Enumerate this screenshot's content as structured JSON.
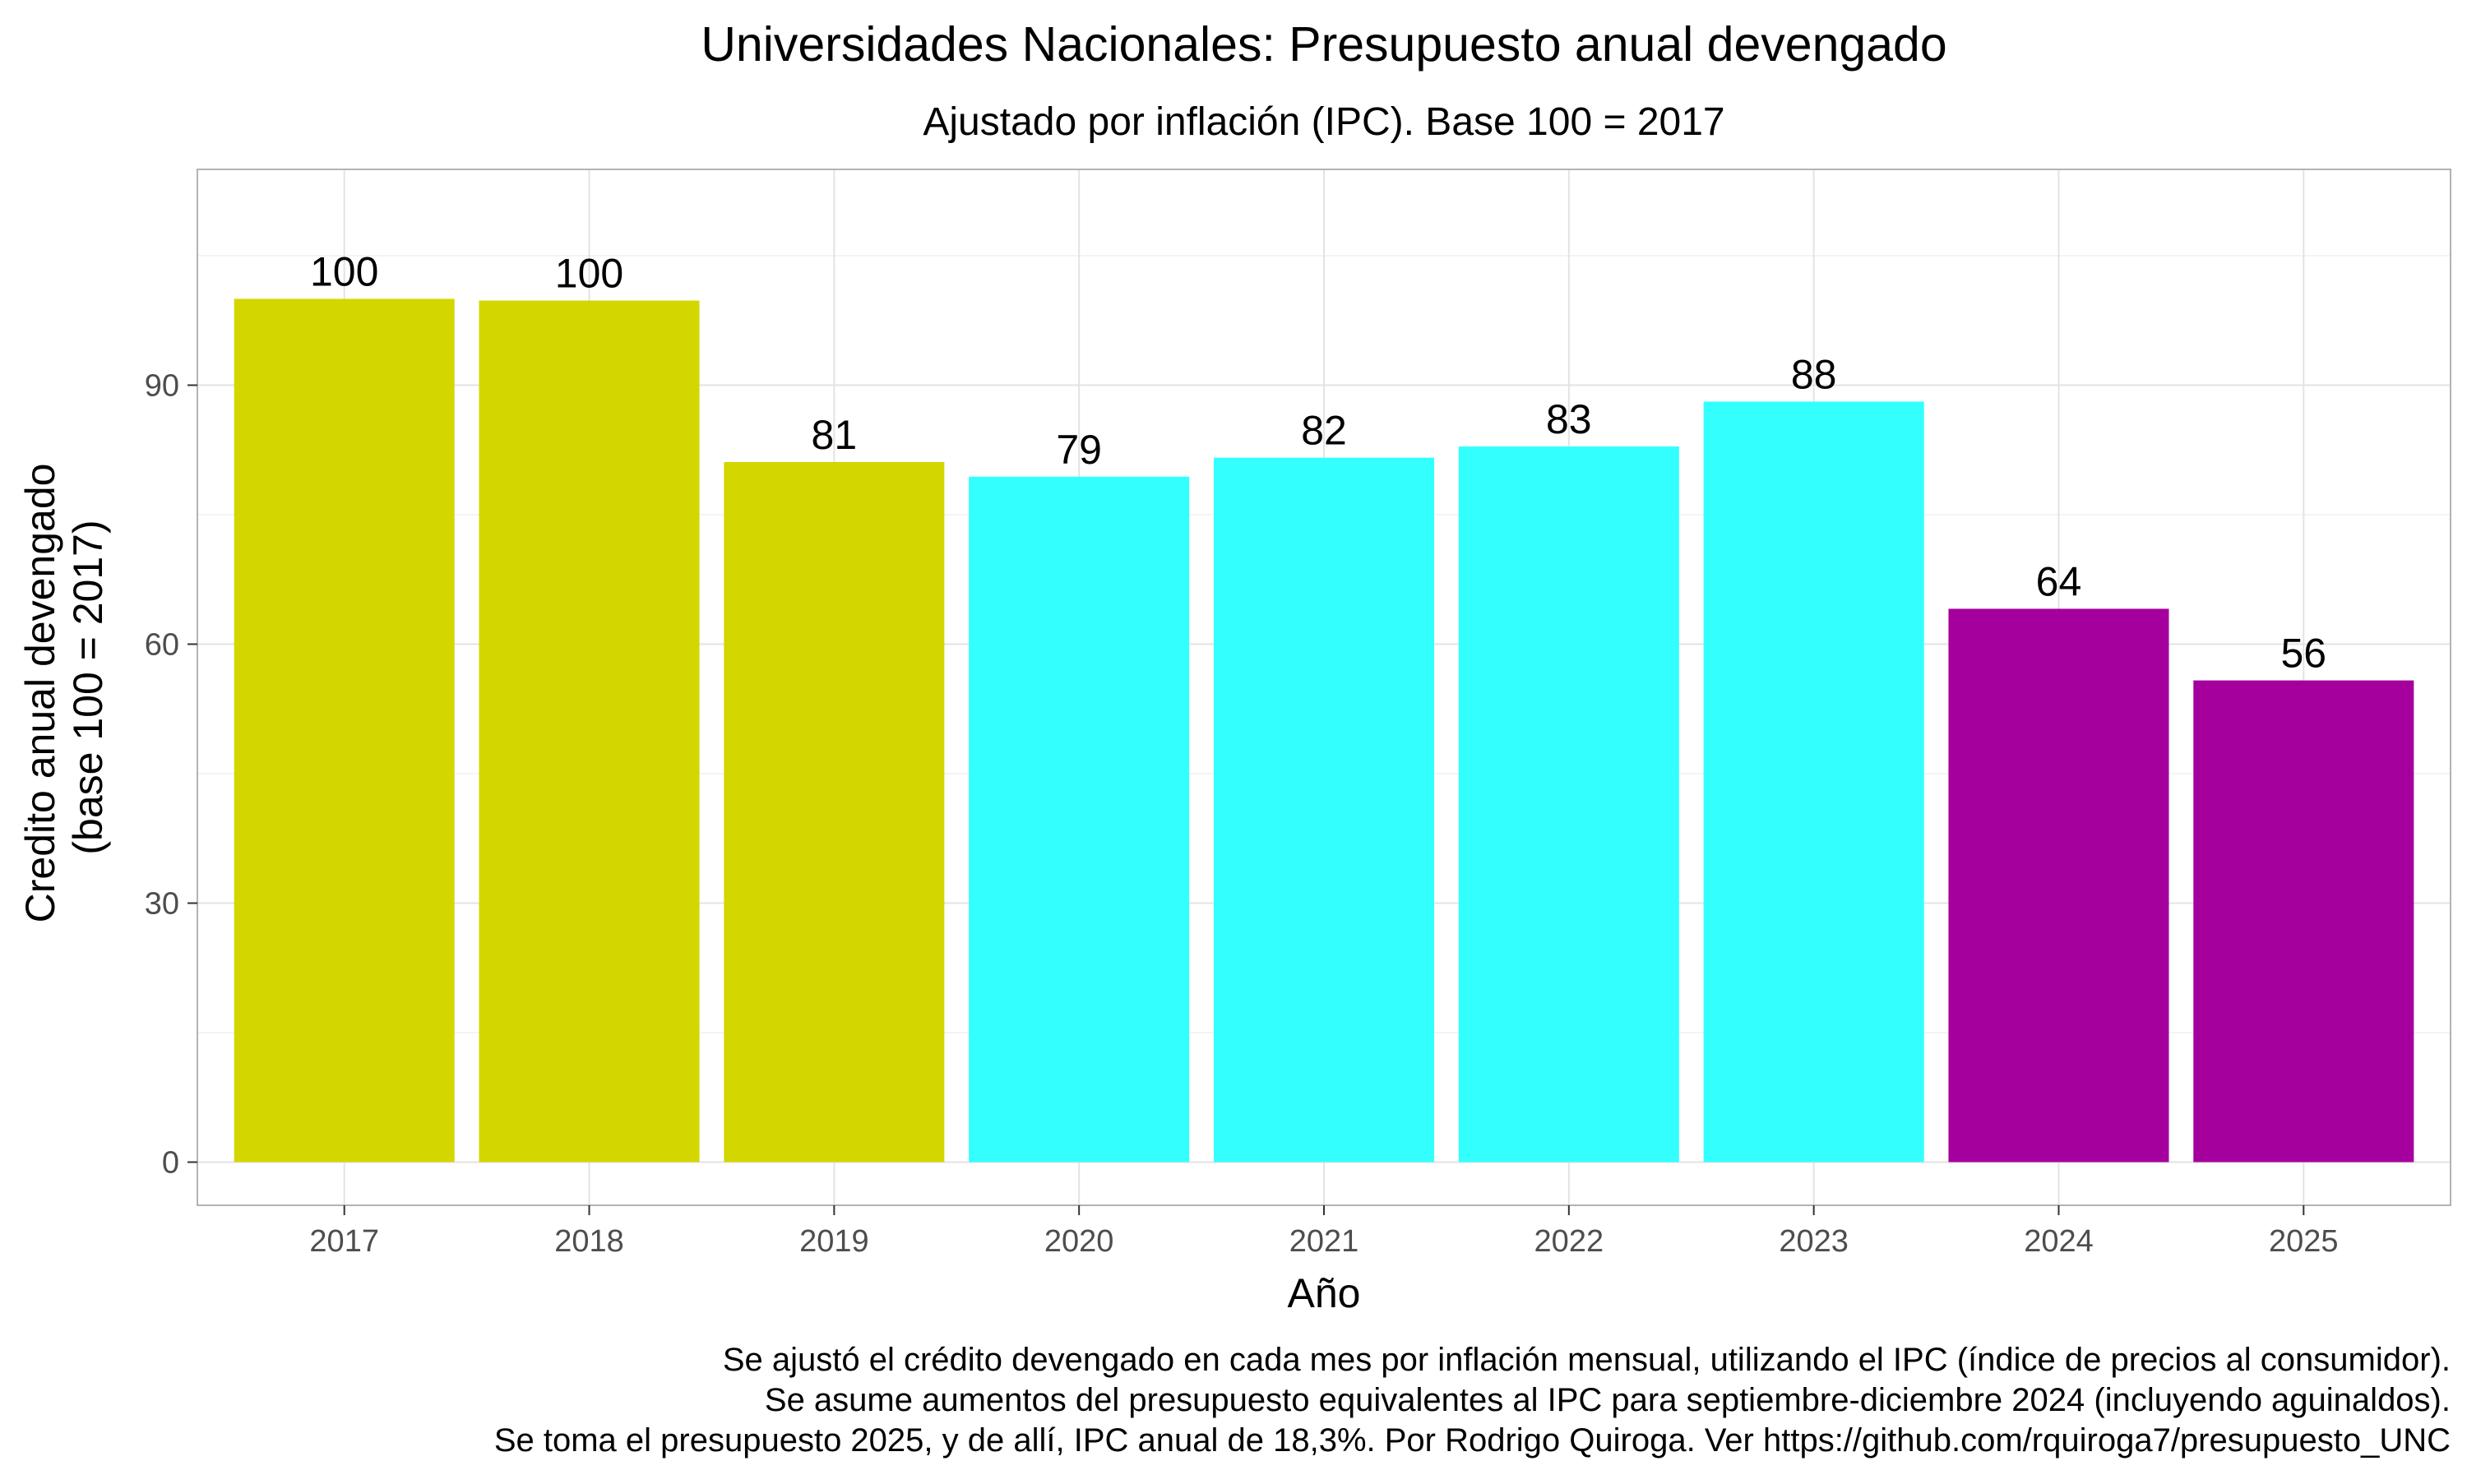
{
  "chart_data": {
    "type": "bar",
    "title": "Universidades Nacionales: Presupuesto anual devengado",
    "subtitle": "Ajustado por inflación (IPC). Base 100 = 2017",
    "xlabel": "Año",
    "ylabel_lines": [
      "Credito anual devengado",
      "(base 100 = 2017)"
    ],
    "categories": [
      "2017",
      "2018",
      "2019",
      "2020",
      "2021",
      "2022",
      "2023",
      "2024",
      "2025"
    ],
    "values": [
      100,
      99.8,
      81.1,
      79.4,
      81.6,
      82.9,
      88.1,
      64.1,
      55.8
    ],
    "data_labels": [
      "100",
      "100",
      "81",
      "79",
      "82",
      "83",
      "88",
      "64",
      "56"
    ],
    "bar_colors": [
      "#D4D600",
      "#D4D600",
      "#D4D600",
      "#33FFFF",
      "#33FFFF",
      "#33FFFF",
      "#33FFFF",
      "#A5009E",
      "#A5009E"
    ],
    "y_ticks": [
      0,
      30,
      60,
      90
    ],
    "ylim": [
      -5,
      115
    ],
    "grid": true,
    "legend": "none",
    "caption_lines": [
      "Se ajustó el crédito devengado en cada mes por inflación mensual, utilizando el IPC (índice de precios al consumidor).",
      "Se asume aumentos del presupuesto equivalentes al IPC para septiembre-diciembre 2024 (incluyendo aguinaldos).",
      "Se toma el presupuesto 2025, y de allí, IPC anual de 18,3%. Por Rodrigo Quiroga. Ver https://github.com/rquiroga7/presupuesto_UNC"
    ]
  }
}
